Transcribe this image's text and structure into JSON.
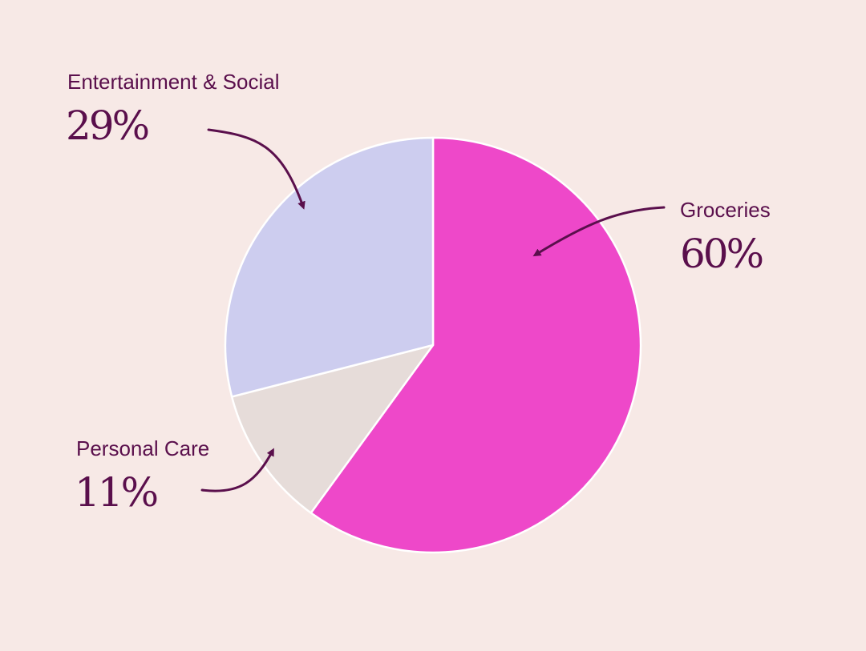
{
  "chart_data": {
    "type": "pie",
    "title": "",
    "slices": [
      {
        "label": "Groceries",
        "value": 60,
        "value_label": "60%",
        "color": "#ee48c9"
      },
      {
        "label": "Personal Care",
        "value": 11,
        "value_label": "11%",
        "color": "#e6dcd9"
      },
      {
        "label": "Entertainment & Social",
        "value": 29,
        "value_label": "29%",
        "color": "#cdcdef"
      }
    ],
    "start_angle": "12 o'clock",
    "direction": "clockwise",
    "slice_border_color": "#ffffff",
    "arrow_color": "#5a0f4c",
    "background_color": "#f7e9e6"
  }
}
